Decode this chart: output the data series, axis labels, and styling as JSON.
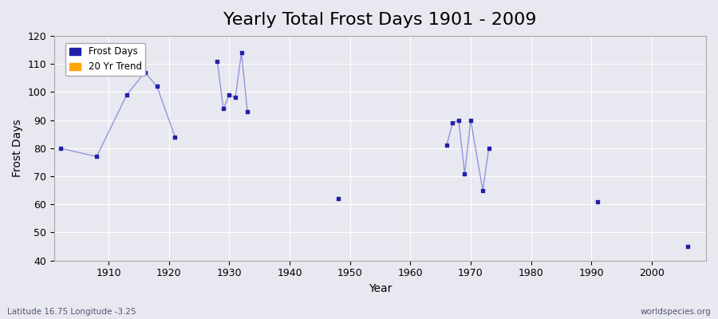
{
  "title": "Yearly Total Frost Days 1901 - 2009",
  "xlabel": "Year",
  "ylabel": "Frost Days",
  "subtitle_lat": "Latitude 16.75 Longitude -3.25",
  "watermark": "worldspecies.org",
  "xlim": [
    1901,
    2009
  ],
  "ylim": [
    40,
    120
  ],
  "yticks": [
    40,
    50,
    60,
    70,
    80,
    90,
    100,
    110,
    120
  ],
  "xticks": [
    1910,
    1920,
    1930,
    1940,
    1950,
    1960,
    1970,
    1980,
    1990,
    2000
  ],
  "data_years": [
    1902,
    1908,
    1913,
    1916,
    1918,
    1921,
    1928,
    1929,
    1930,
    1931,
    1932,
    1933,
    1948,
    1966,
    1967,
    1968,
    1969,
    1970,
    1972,
    1973,
    1991,
    2006
  ],
  "data_values": [
    80,
    77,
    99,
    107,
    102,
    84,
    111,
    94,
    99,
    98,
    114,
    93,
    62,
    81,
    89,
    90,
    71,
    90,
    65,
    80,
    61,
    45
  ],
  "line_color": "#4040cc",
  "line_alpha": 0.5,
  "marker_color": "#2020aa",
  "bg_color": "#e8e8f0",
  "grid_color": "#ffffff",
  "legend_frost_color": "#2020aa",
  "legend_trend_color": "#ffa500",
  "title_fontsize": 16,
  "label_fontsize": 10,
  "tick_fontsize": 9
}
